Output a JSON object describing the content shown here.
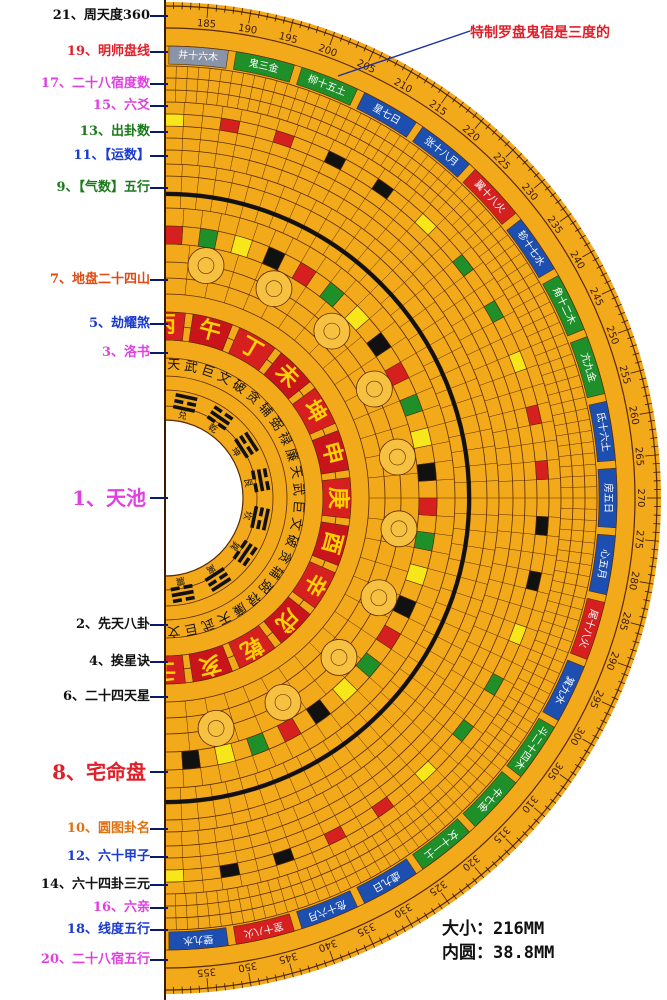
{
  "labels": [
    {
      "text": "21、周天度360",
      "color": "#111111"
    },
    {
      "text": "19、明师盘线",
      "color": "#e0202a"
    },
    {
      "text": "17、二十八宿度数",
      "color": "#e040e0"
    },
    {
      "text": "15、六爻",
      "color": "#e040e0"
    },
    {
      "text": "13、出卦数",
      "color": "#1a7a1a"
    },
    {
      "text": "11、【运数】",
      "color": "#1a3ad0"
    },
    {
      "text": "9、【气数】五行",
      "color": "#1a7a1a"
    },
    {
      "text": "7、地盘二十四山",
      "color": "#e04a10"
    },
    {
      "text": "5、劫耀煞",
      "color": "#1a3ad0"
    },
    {
      "text": "3、洛书",
      "color": "#e040e0"
    },
    {
      "text": "1、天池",
      "color": "#e040e0"
    },
    {
      "text": "2、先天八卦",
      "color": "#111111"
    },
    {
      "text": "4、挨星诀",
      "color": "#111111"
    },
    {
      "text": "6、二十四天星",
      "color": "#111111"
    },
    {
      "text": "8、宅命盘",
      "color": "#e0202a"
    },
    {
      "text": "10、圆图卦名",
      "color": "#e07010"
    },
    {
      "text": "12、六十甲子",
      "color": "#1a3ad0"
    },
    {
      "text": "14、六十四卦三元",
      "color": "#111111"
    },
    {
      "text": "16、六亲",
      "color": "#e040e0"
    },
    {
      "text": "18、线度五行",
      "color": "#1a3ad0"
    },
    {
      "text": "20、二十八宿五行",
      "color": "#e040e0"
    }
  ],
  "annotation": "特制罗盘鬼宿是三度的",
  "size_text": "大小：216MM",
  "inner_text": "内圆：38.8MM",
  "degree_labels": [
    "185",
    "190",
    "195",
    "200",
    "205",
    "210",
    "215",
    "220",
    "225",
    "230",
    "235",
    "240",
    "245",
    "250",
    "255",
    "260",
    "265",
    "270",
    "275",
    "280",
    "285",
    "290",
    "295",
    "300",
    "305",
    "310",
    "315",
    "320",
    "325",
    "330",
    "335",
    "340",
    "345",
    "350",
    "355"
  ],
  "mountains": [
    "丙",
    "午",
    "丁",
    "未",
    "坤",
    "申",
    "庚",
    "酉",
    "辛",
    "戌",
    "乾",
    "亥",
    "壬"
  ],
  "mansions": [
    "井十六木",
    "鬼三金",
    "柳十五土",
    "星七日",
    "张十八月",
    "翼十八火",
    "轸十七水",
    "角十二木",
    "亢九金",
    "氐十六土",
    "房五日",
    "心五月",
    "尾十八火",
    "箕九水",
    "斗二十四木",
    "牛七金",
    "女十一土",
    "虚九日",
    "危十六月",
    "室十八火",
    "壁九水"
  ],
  "trigram_names": [
    "兑",
    "乾",
    "坤",
    "艮",
    "坎",
    "巽",
    "离",
    "震"
  ],
  "stars": [
    "天",
    "武",
    "巨",
    "文",
    "破",
    "贪",
    "辅",
    "弼",
    "禄",
    "廉"
  ],
  "colors": {
    "brass": "#f2a91a",
    "ring_line": "#5a2a00",
    "red": "#d6201f",
    "green": "#1f8f2a",
    "blue": "#1d4fb0",
    "gray": "#8a94a8",
    "yellow": "#f6e61a",
    "black": "#111111",
    "label_tick": "#0a1a6a"
  }
}
